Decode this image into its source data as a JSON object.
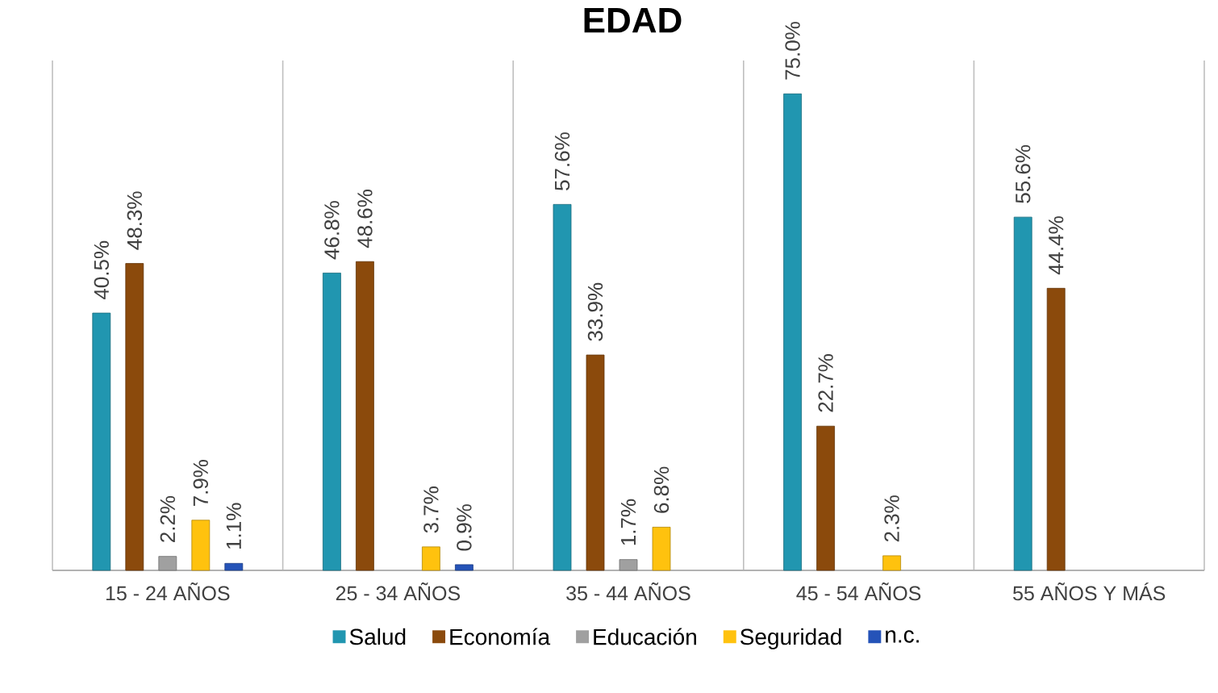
{
  "chart_data": {
    "type": "bar",
    "title": "EDAD",
    "categories": [
      "15 - 24 AÑOS",
      "25 - 34 AÑOS",
      "35 - 44 AÑOS",
      "45 - 54 AÑOS",
      "55 AÑOS Y MÁS"
    ],
    "series": [
      {
        "name": "Salud",
        "color": "#2196b0",
        "values": [
          40.5,
          46.8,
          57.6,
          75.0,
          55.6
        ],
        "value_labels": [
          "40.5%",
          "46.8%",
          "57.6%",
          "75.0%",
          "55.6%"
        ]
      },
      {
        "name": "Economía",
        "color": "#8b4a0c",
        "values": [
          48.3,
          48.6,
          33.9,
          22.7,
          44.4
        ],
        "value_labels": [
          "48.3%",
          "48.6%",
          "33.9%",
          "22.7%",
          "44.4%"
        ]
      },
      {
        "name": "Educación",
        "color": "#a0a0a0",
        "values": [
          2.2,
          null,
          1.7,
          null,
          null
        ],
        "value_labels": [
          "2.2%",
          null,
          "1.7%",
          null,
          null
        ]
      },
      {
        "name": "Seguridad",
        "color": "#ffc20e",
        "values": [
          7.9,
          3.7,
          6.8,
          2.3,
          null
        ],
        "value_labels": [
          "7.9%",
          "3.7%",
          "6.8%",
          "2.3%",
          null
        ]
      },
      {
        "name": "n.c.",
        "color": "#2553b8",
        "values": [
          1.1,
          0.9,
          null,
          null,
          null
        ],
        "value_labels": [
          "1.1%",
          "0.9%",
          null,
          null,
          null
        ]
      }
    ],
    "grid": "x",
    "legend": "bottom"
  }
}
